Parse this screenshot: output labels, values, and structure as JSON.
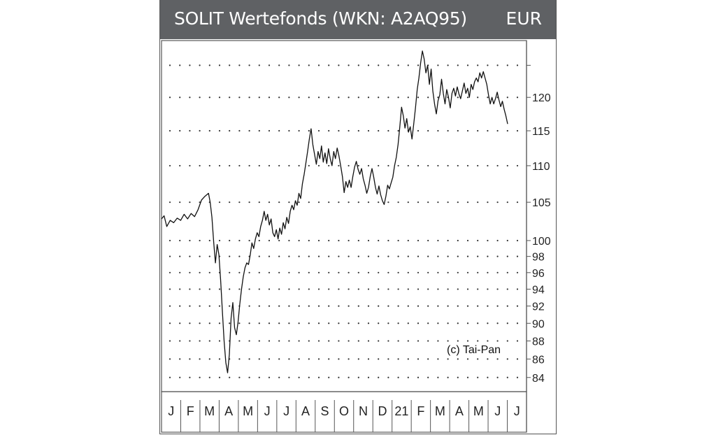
{
  "header": {
    "title": "SOLIT Wertefonds (WKN: A2AQ95)",
    "currency": "EUR"
  },
  "chart_data": {
    "type": "line",
    "title": "SOLIT Wertefonds (WKN: A2AQ95)",
    "unit": "EUR",
    "credit": "(c) Tai-Pan",
    "grid": "dotted",
    "yscale": "log",
    "ylim": [
      82.5,
      129
    ],
    "yticks": [
      84,
      86,
      88,
      90,
      92,
      94,
      96,
      98,
      100,
      105,
      110,
      115,
      120
    ],
    "xticks": [
      "J",
      "F",
      "M",
      "A",
      "M",
      "J",
      "J",
      "A",
      "S",
      "O",
      "N",
      "D",
      "21",
      "F",
      "M",
      "A",
      "M",
      "J",
      "J"
    ],
    "series": [
      {
        "values": [
          [
            0,
            102.8
          ],
          [
            1.5,
            103.2
          ],
          [
            3,
            101.8
          ],
          [
            5,
            102.6
          ],
          [
            7,
            102.3
          ],
          [
            9,
            102.9
          ],
          [
            11,
            102.6
          ],
          [
            13,
            103.4
          ],
          [
            15,
            102.8
          ],
          [
            17,
            103.5
          ],
          [
            19,
            103.1
          ],
          [
            21,
            104.0
          ],
          [
            23,
            105.3
          ],
          [
            25,
            105.8
          ],
          [
            27,
            106.2
          ],
          [
            28,
            105.0
          ],
          [
            29,
            103.0
          ],
          [
            30,
            99.8
          ],
          [
            31,
            97.2
          ],
          [
            32,
            99.5
          ],
          [
            33,
            98.2
          ],
          [
            34,
            95.0
          ],
          [
            35,
            91.3
          ],
          [
            36,
            88.0
          ],
          [
            37,
            85.6
          ],
          [
            38,
            84.5
          ],
          [
            39,
            86.5
          ],
          [
            40,
            90.6
          ],
          [
            41,
            92.4
          ],
          [
            42,
            89.5
          ],
          [
            43,
            88.7
          ],
          [
            44,
            90.1
          ],
          [
            45,
            92.2
          ],
          [
            46,
            94.0
          ],
          [
            47,
            95.5
          ],
          [
            48,
            96.6
          ],
          [
            49,
            97.2
          ],
          [
            50,
            97.0
          ],
          [
            51,
            98.2
          ],
          [
            52,
            99.7
          ],
          [
            53,
            99.0
          ],
          [
            54,
            100.2
          ],
          [
            55,
            101.0
          ],
          [
            56,
            100.5
          ],
          [
            57,
            101.8
          ],
          [
            58,
            102.6
          ],
          [
            59,
            103.8
          ],
          [
            60,
            102.6
          ],
          [
            61,
            103.4
          ],
          [
            62,
            102.0
          ],
          [
            63,
            102.8
          ],
          [
            64,
            101.0
          ],
          [
            65,
            100.5
          ],
          [
            66,
            101.4
          ],
          [
            67,
            100.2
          ],
          [
            68,
            101.6
          ],
          [
            69,
            100.8
          ],
          [
            70,
            102.3
          ],
          [
            71,
            101.5
          ],
          [
            72,
            103.0
          ],
          [
            73,
            102.2
          ],
          [
            74,
            103.8
          ],
          [
            75,
            104.6
          ],
          [
            76,
            104.0
          ],
          [
            77,
            105.2
          ],
          [
            78,
            104.6
          ],
          [
            79,
            106.2
          ],
          [
            80,
            105.5
          ],
          [
            81,
            107.5
          ],
          [
            82,
            108.8
          ],
          [
            83,
            110.4
          ],
          [
            84,
            112.0
          ],
          [
            85,
            113.8
          ],
          [
            86,
            115.3
          ],
          [
            87,
            113.0
          ],
          [
            88,
            111.6
          ],
          [
            89,
            110.2
          ],
          [
            90,
            112.0
          ],
          [
            91,
            111.0
          ],
          [
            92,
            112.8
          ],
          [
            93,
            110.5
          ],
          [
            94,
            111.8
          ],
          [
            95,
            110.3
          ],
          [
            96,
            112.4
          ],
          [
            97,
            111.0
          ],
          [
            98,
            110.0
          ],
          [
            99,
            112.0
          ],
          [
            100,
            111.0
          ],
          [
            101,
            112.5
          ],
          [
            102,
            111.4
          ],
          [
            103,
            110.0
          ],
          [
            104,
            108.5
          ],
          [
            105,
            106.3
          ],
          [
            106,
            107.8
          ],
          [
            107,
            107.0
          ],
          [
            108,
            108.0
          ],
          [
            109,
            107.0
          ],
          [
            110,
            108.5
          ],
          [
            111,
            109.8
          ],
          [
            112,
            110.6
          ],
          [
            113,
            109.5
          ],
          [
            114,
            108.8
          ],
          [
            115,
            109.6
          ],
          [
            116,
            108.2
          ],
          [
            117,
            107.3
          ],
          [
            118,
            106.2
          ],
          [
            119,
            107.0
          ],
          [
            120,
            108.5
          ],
          [
            121,
            109.6
          ],
          [
            122,
            108.4
          ],
          [
            123,
            107.0
          ],
          [
            124,
            106.1
          ],
          [
            125,
            107.2
          ],
          [
            126,
            106.0
          ],
          [
            127,
            105.2
          ],
          [
            128,
            104.7
          ],
          [
            129,
            105.8
          ],
          [
            130,
            107.3
          ],
          [
            131,
            106.8
          ],
          [
            132,
            107.6
          ],
          [
            133,
            108.4
          ],
          [
            134,
            110.0
          ],
          [
            135,
            111.2
          ],
          [
            136,
            113.0
          ],
          [
            137,
            115.6
          ],
          [
            138,
            118.5
          ],
          [
            139,
            117.2
          ],
          [
            140,
            115.4
          ],
          [
            141,
            116.8
          ],
          [
            142,
            114.8
          ],
          [
            143,
            115.6
          ],
          [
            144,
            113.8
          ],
          [
            145,
            116.0
          ],
          [
            146,
            118.4
          ],
          [
            147,
            121.2
          ],
          [
            148,
            123.0
          ],
          [
            149,
            125.4
          ],
          [
            150,
            127.3
          ],
          [
            151,
            126.0
          ],
          [
            152,
            123.8
          ],
          [
            153,
            125.0
          ],
          [
            154,
            122.0
          ],
          [
            155,
            124.4
          ],
          [
            156,
            121.0
          ],
          [
            157,
            119.0
          ],
          [
            158,
            117.5
          ],
          [
            159,
            119.5
          ],
          [
            160,
            120.4
          ],
          [
            161,
            122.8
          ],
          [
            162,
            120.6
          ],
          [
            163,
            119.0
          ],
          [
            164,
            121.2
          ],
          [
            165,
            120.0
          ],
          [
            166,
            118.4
          ],
          [
            167,
            120.6
          ],
          [
            168,
            121.4
          ],
          [
            169,
            120.2
          ],
          [
            170,
            121.6
          ],
          [
            171,
            120.5
          ],
          [
            172,
            119.8
          ],
          [
            173,
            121.0
          ],
          [
            174,
            122.2
          ],
          [
            175,
            120.6
          ],
          [
            176,
            121.4
          ],
          [
            177,
            120.0
          ],
          [
            178,
            122.0
          ],
          [
            179,
            121.2
          ],
          [
            180,
            122.4
          ],
          [
            181,
            123.0
          ],
          [
            182,
            122.4
          ],
          [
            183,
            123.8
          ],
          [
            184,
            123.0
          ],
          [
            185,
            124.0
          ],
          [
            186,
            123.0
          ],
          [
            187,
            122.0
          ],
          [
            188,
            120.4
          ],
          [
            189,
            119.0
          ],
          [
            190,
            120.0
          ],
          [
            191,
            119.0
          ],
          [
            192,
            119.8
          ],
          [
            193,
            120.8
          ],
          [
            194,
            119.6
          ],
          [
            195,
            118.6
          ],
          [
            196,
            119.4
          ],
          [
            197,
            118.2
          ],
          [
            198,
            117.2
          ],
          [
            199,
            116.0
          ]
        ]
      }
    ]
  }
}
